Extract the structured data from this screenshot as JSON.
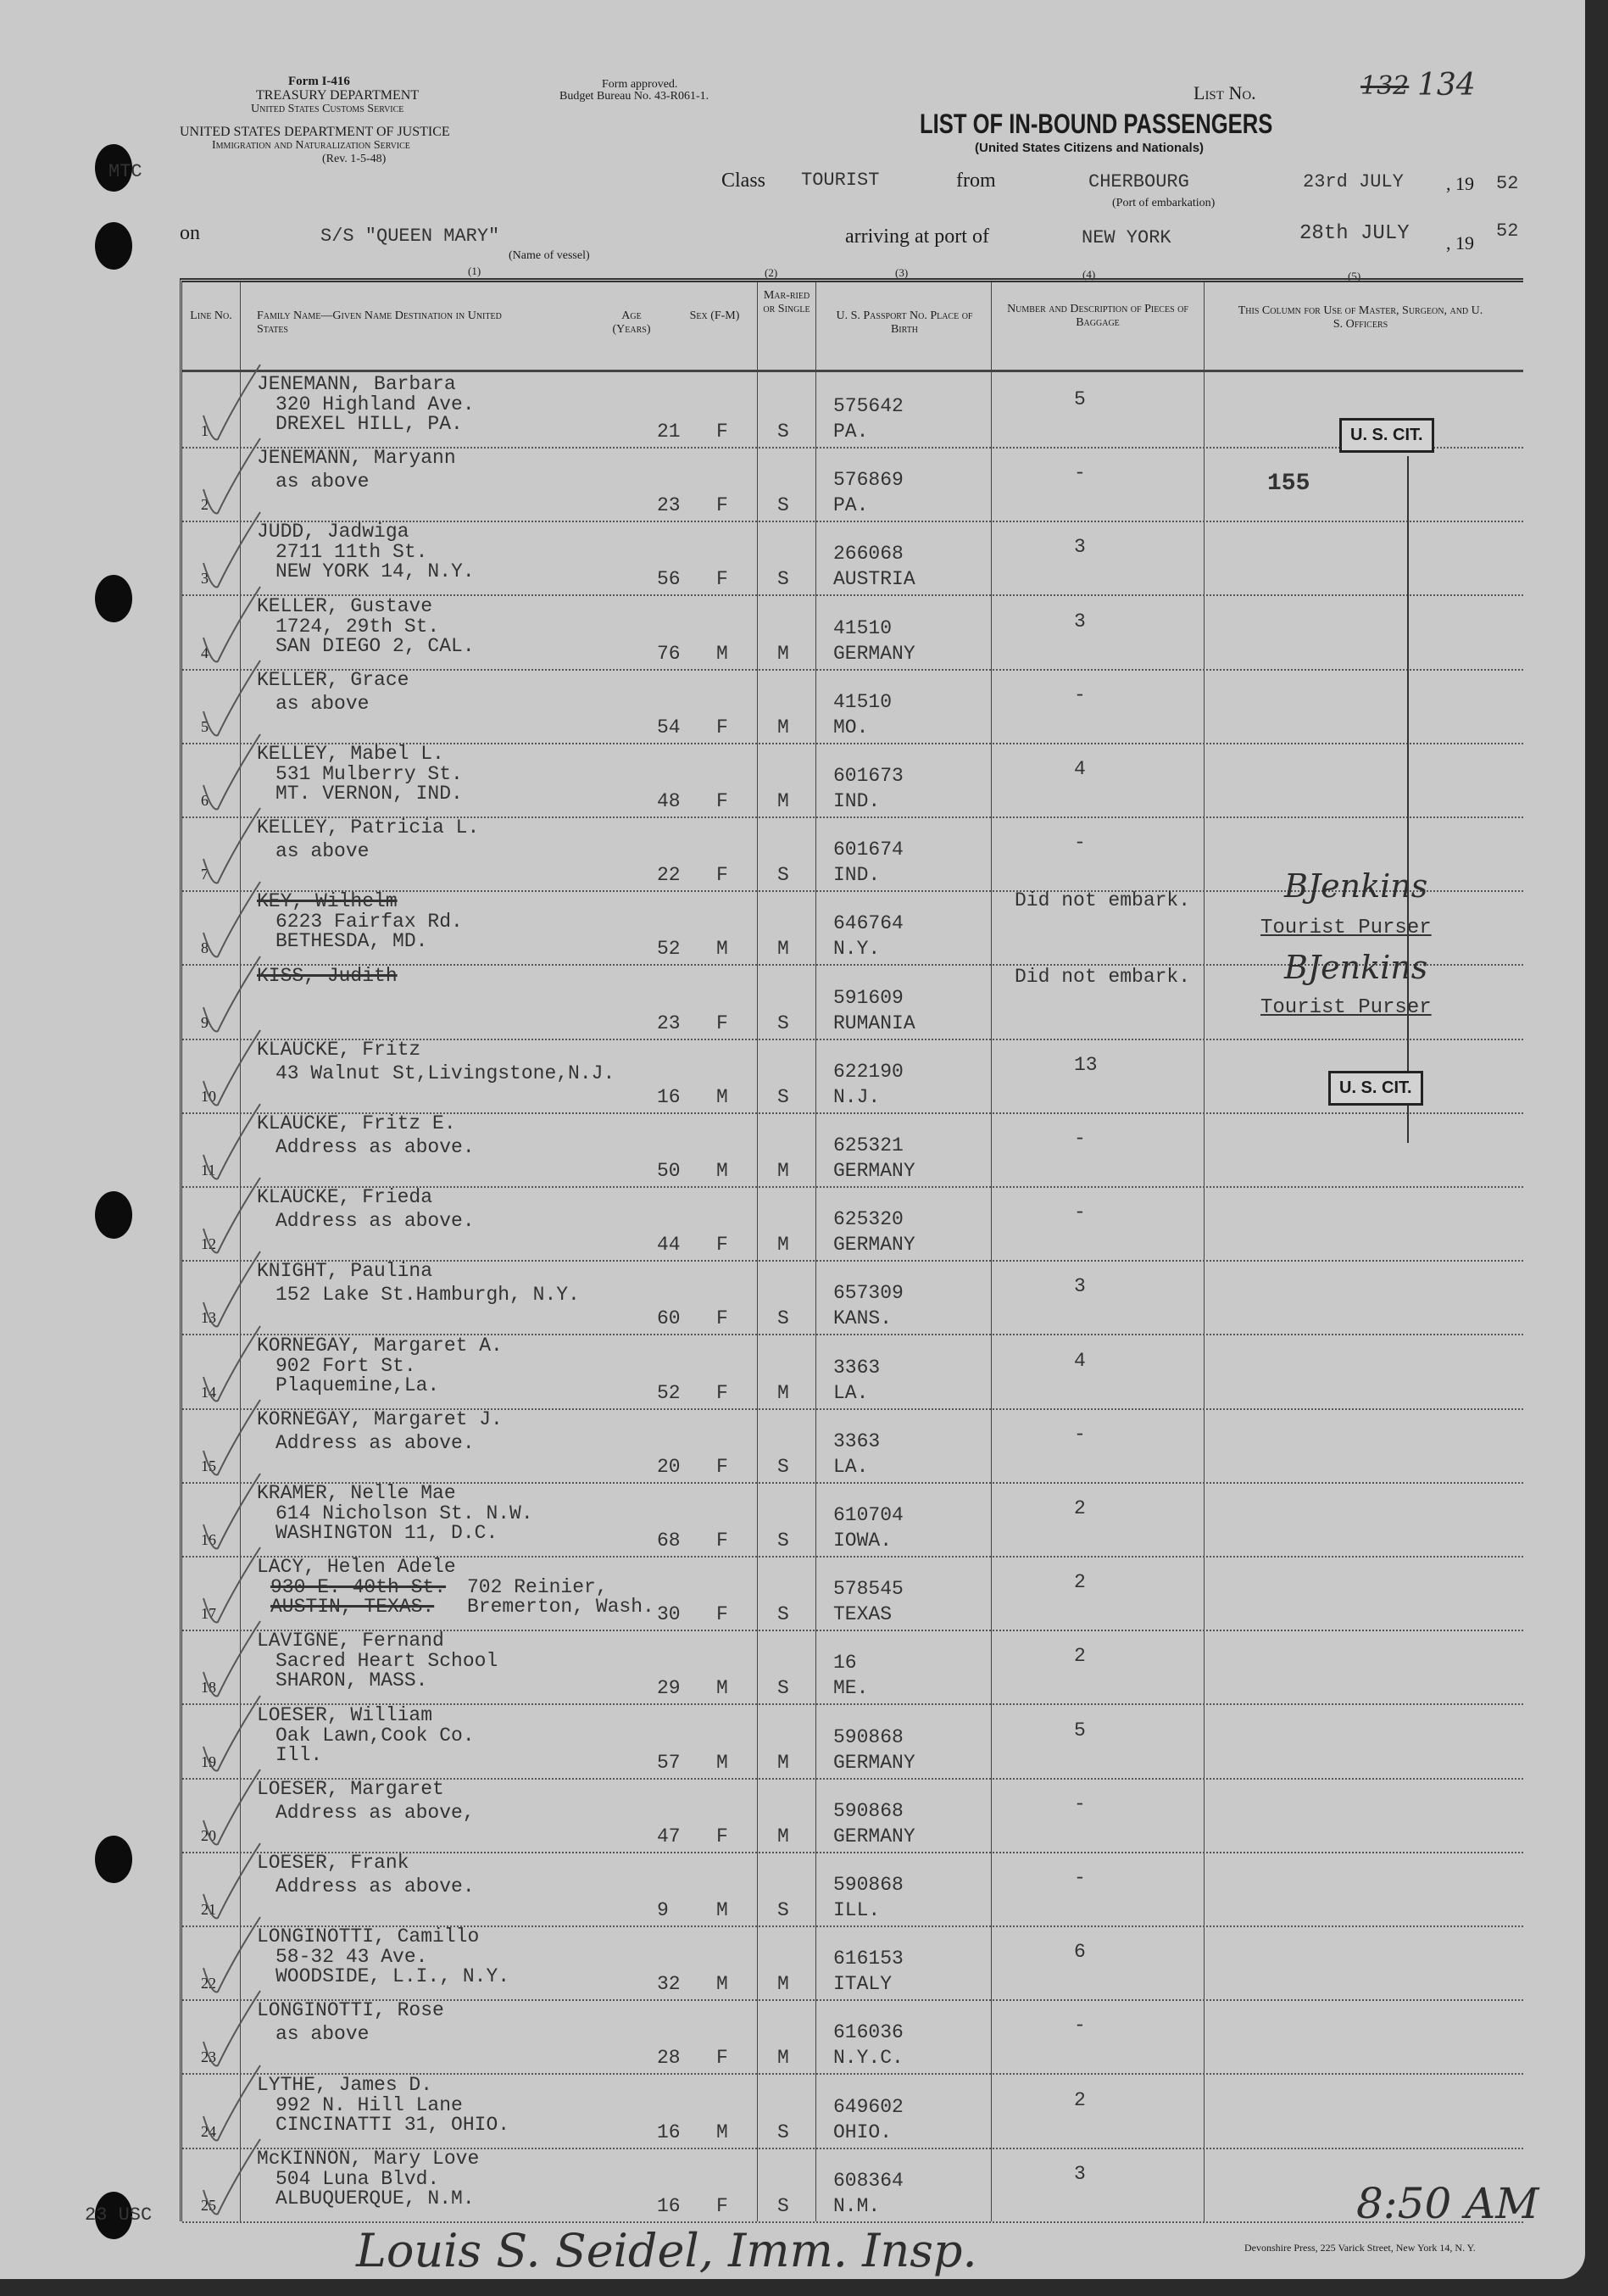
{
  "header": {
    "form_no": "Form I-416",
    "treasury": "TREASURY DEPARTMENT",
    "customs": "United States Customs Service",
    "justice": "UNITED STATES DEPARTMENT OF JUSTICE",
    "ins": "Immigration and Naturalization Service",
    "rev": "(Rev. 1-5-48)",
    "approved": "Form approved.",
    "budget": "Budget Bureau No. 43-R061-1.",
    "list_label": "List No.",
    "list_struck": "132",
    "list_value": "134",
    "title": "LIST OF IN-BOUND PASSENGERS",
    "subtitle": "(United States Citizens and Nationals)",
    "class_label": "Class",
    "class_value": "TOURIST",
    "from_label": "from",
    "from_value": "CHERBOURG",
    "port_note": "(Port of embarkation)",
    "dep_date": "23rd JULY",
    "year_prefix": ", 19",
    "dep_year": "52",
    "on_label": "on",
    "vessel": "S/S \"QUEEN MARY\"",
    "vessel_note": "(Name of vessel)",
    "arriving_label": "arriving at port of",
    "arrival_port": "NEW YORK",
    "arr_date": "28th JULY",
    "arr_year_prefix": ", 19",
    "arr_year": "52",
    "col_numbers": [
      "(1)",
      "(2)",
      "(3)",
      "(4)",
      "(5)"
    ],
    "margin_note": "MTC",
    "margin_bottom": "23 USC"
  },
  "columns": {
    "line": "Line No.",
    "name": "Family Name—Given Name Destination in United States",
    "age": "Age (Years)",
    "sex": "Sex (F-M)",
    "married": "Mar-ried or Single",
    "passport": "U. S. Passport No. Place of Birth",
    "baggage": "Number and Description of Pieces of Baggage",
    "officers": "This Column for Use of Master, Surgeon, and U. S. Officers"
  },
  "rows": [
    {
      "line": "1",
      "name": "JENEMANN, Barbara",
      "addr": [
        "320 Highland Ave.",
        "DREXEL HILL, PA."
      ],
      "age": "21",
      "sex": "F",
      "ms": "S",
      "passport": "575642",
      "birth": "PA.",
      "bag": "5"
    },
    {
      "line": "2",
      "name": "JENEMANN, Maryann",
      "addr": [
        "as above"
      ],
      "age": "23",
      "sex": "F",
      "ms": "S",
      "passport": "576869",
      "birth": "PA.",
      "bag": "-"
    },
    {
      "line": "3",
      "name": "JUDD, Jadwiga",
      "addr": [
        "2711 11th St.",
        "NEW YORK 14, N.Y."
      ],
      "age": "56",
      "sex": "F",
      "ms": "S",
      "passport": "266068",
      "birth": "AUSTRIA",
      "bag": "3"
    },
    {
      "line": "4",
      "name": "KELLER, Gustave",
      "addr": [
        "1724, 29th St.",
        "SAN DIEGO 2, CAL."
      ],
      "age": "76",
      "sex": "M",
      "ms": "M",
      "passport": "41510",
      "birth": "GERMANY",
      "bag": "3"
    },
    {
      "line": "5",
      "name": "KELLER, Grace",
      "addr": [
        "as above"
      ],
      "age": "54",
      "sex": "F",
      "ms": "M",
      "passport": "41510",
      "birth": "MO.",
      "bag": "-"
    },
    {
      "line": "6",
      "name": "KELLEY, Mabel L.",
      "addr": [
        "531 Mulberry St.",
        "MT. VERNON, IND."
      ],
      "age": "48",
      "sex": "F",
      "ms": "M",
      "passport": "601673",
      "birth": "IND.",
      "bag": "4"
    },
    {
      "line": "7",
      "name": "KELLEY, Patricia L.",
      "addr": [
        "as above"
      ],
      "age": "22",
      "sex": "F",
      "ms": "S",
      "passport": "601674",
      "birth": "IND.",
      "bag": "-"
    },
    {
      "line": "8",
      "name": "KEY, Wilhelm",
      "struck": true,
      "addr": [
        "6223 Fairfax Rd.",
        "BETHESDA, MD."
      ],
      "age": "52",
      "sex": "M",
      "ms": "M",
      "passport": "646764",
      "birth": "N.Y.",
      "bag": ""
    },
    {
      "line": "9",
      "name": "KISS, Judith",
      "struck": true,
      "addr": [],
      "age": "23",
      "sex": "F",
      "ms": "S",
      "passport": "591609",
      "birth": "RUMANIA",
      "bag": ""
    },
    {
      "line": "10",
      "name": "KLAUCKE, Fritz",
      "addr": [
        "43 Walnut St,Livingstone,N.J."
      ],
      "age": "16",
      "sex": "M",
      "ms": "S",
      "passport": "622190",
      "birth": "N.J.",
      "bag": "13"
    },
    {
      "line": "11",
      "name": "KLAUCKE, Fritz E.",
      "addr": [
        "Address as above."
      ],
      "age": "50",
      "sex": "M",
      "ms": "M",
      "passport": "625321",
      "birth": "GERMANY",
      "bag": "-"
    },
    {
      "line": "12",
      "name": "KLAUCKE, Frieda",
      "addr": [
        "Address as above."
      ],
      "age": "44",
      "sex": "F",
      "ms": "M",
      "passport": "625320",
      "birth": "GERMANY",
      "bag": "-"
    },
    {
      "line": "13",
      "name": "KNIGHT, Paulina",
      "addr": [
        "152 Lake St.Hamburgh, N.Y."
      ],
      "age": "60",
      "sex": "F",
      "ms": "S",
      "passport": "657309",
      "birth": "KANS.",
      "bag": "3"
    },
    {
      "line": "14",
      "name": "KORNEGAY, Margaret A.",
      "addr": [
        "902 Fort St.",
        "Plaquemine,La."
      ],
      "age": "52",
      "sex": "F",
      "ms": "M",
      "passport": "3363",
      "birth": "LA.",
      "bag": "4"
    },
    {
      "line": "15",
      "name": "KORNEGAY, Margaret J.",
      "addr": [
        "Address as above."
      ],
      "age": "20",
      "sex": "F",
      "ms": "S",
      "passport": "3363",
      "birth": "LA.",
      "bag": "-"
    },
    {
      "line": "16",
      "name": "KRAMER, Nelle Mae",
      "addr": [
        "614 Nicholson St. N.W.",
        "WASHINGTON 11, D.C."
      ],
      "age": "68",
      "sex": "F",
      "ms": "S",
      "passport": "610704",
      "birth": "IOWA.",
      "bag": "2"
    },
    {
      "line": "17",
      "name": "LACY, Helen Adele",
      "addr": [
        "702 Reinier,",
        "Bremerton, Wash."
      ],
      "addr_struck": [
        "930 E. 40th St.",
        "AUSTIN, TEXAS."
      ],
      "age": "30",
      "sex": "F",
      "ms": "S",
      "passport": "578545",
      "birth": "TEXAS",
      "bag": "2"
    },
    {
      "line": "18",
      "name": "LAVIGNE, Fernand",
      "addr": [
        "Sacred Heart School",
        "SHARON, MASS."
      ],
      "age": "29",
      "sex": "M",
      "ms": "S",
      "passport": "16",
      "birth": "ME.",
      "bag": "2"
    },
    {
      "line": "19",
      "name": "LOESER, William",
      "addr": [
        "Oak Lawn,Cook Co.",
        "Ill."
      ],
      "age": "57",
      "sex": "M",
      "ms": "M",
      "passport": "590868",
      "birth": "GERMANY",
      "bag": "5"
    },
    {
      "line": "20",
      "name": "LOESER, Margaret",
      "addr": [
        "Address as above,"
      ],
      "age": "47",
      "sex": "F",
      "ms": "M",
      "passport": "590868",
      "birth": "GERMANY",
      "bag": "-"
    },
    {
      "line": "21",
      "name": "LOESER, Frank",
      "addr": [
        "Address as above."
      ],
      "age": "9",
      "sex": "M",
      "ms": "S",
      "passport": "590868",
      "birth": "ILL.",
      "bag": "-"
    },
    {
      "line": "22",
      "name": "LONGINOTTI, Camillo",
      "addr": [
        "58-32 43 Ave.",
        "WOODSIDE, L.I., N.Y."
      ],
      "age": "32",
      "sex": "M",
      "ms": "M",
      "passport": "616153",
      "birth": "ITALY",
      "bag": "6"
    },
    {
      "line": "23",
      "name": "LONGINOTTI, Rose",
      "addr": [
        "as above"
      ],
      "age": "28",
      "sex": "F",
      "ms": "M",
      "passport": "616036",
      "birth": "N.Y.C.",
      "bag": "-"
    },
    {
      "line": "24",
      "name": "LYTHE, James D.",
      "addr": [
        "992 N. Hill Lane",
        "CINCINATTI 31, OHIO."
      ],
      "age": "16",
      "sex": "M",
      "ms": "S",
      "passport": "649602",
      "birth": "OHIO.",
      "bag": "2"
    },
    {
      "line": "25",
      "name": "McKINNON, Mary Love",
      "addr": [
        "504 Luna Blvd.",
        "ALBUQUERQUE, N.M."
      ],
      "age": "16",
      "sex": "F",
      "ms": "S",
      "passport": "608364",
      "birth": "N.M.",
      "bag": "3"
    }
  ],
  "officers": {
    "stamp": "U. S. CIT.",
    "count": "155",
    "not_embarked": "Did not embark.",
    "purser_title": "Tourist Purser",
    "purser_signature": "BJenkins"
  },
  "footer": {
    "printer": "Devonshire Press, 225 Varick Street, New York 14, N. Y.",
    "inspector_signature": "Louis S. Seidel, Imm. Insp.",
    "time": "8:50 AM"
  }
}
